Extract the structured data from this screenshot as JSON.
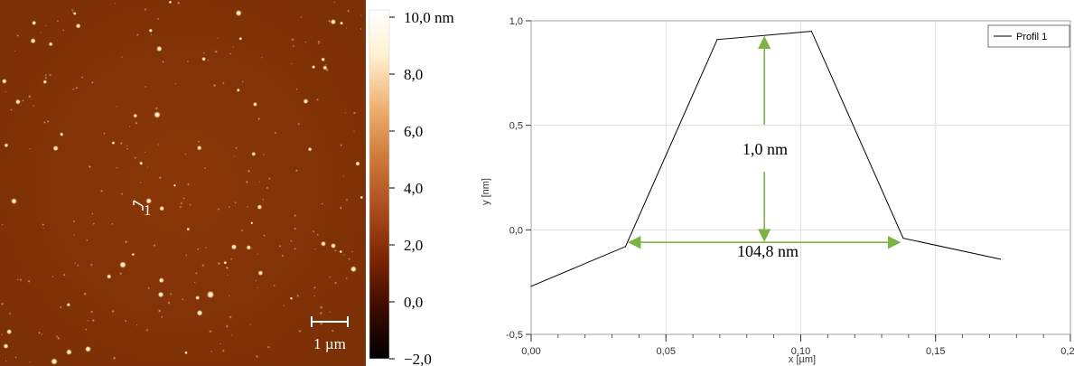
{
  "afm_image": {
    "scale_bar_label": "1 µm",
    "profile_marker_label": "1",
    "colorbar": {
      "ticks": [
        "10,0 nm",
        "8,0",
        "6,0",
        "4,0",
        "2,0",
        "0,0",
        "−2,0"
      ],
      "colors": [
        "#000000",
        "#3a0a00",
        "#7a2400",
        "#a84a1c",
        "#cf7a3a",
        "#f0b070",
        "#fff1d2",
        "#ffffff"
      ]
    }
  },
  "chart_data": {
    "type": "line",
    "xlabel": "x [µm]",
    "ylabel": "y [nm]",
    "xlim": [
      0,
      0.2
    ],
    "ylim": [
      -0.5,
      1.0
    ],
    "xticks": [
      "0,00",
      "0,05",
      "0,10",
      "0,15",
      "0,20"
    ],
    "yticks": [
      "-0,5",
      "0,0",
      "0,5",
      "1,0"
    ],
    "grid": true,
    "legend_position": "top-right",
    "series": [
      {
        "name": "Profil 1",
        "color": "#000000",
        "x": [
          0.0,
          0.035,
          0.069,
          0.104,
          0.138,
          0.174
        ],
        "y": [
          -0.27,
          -0.08,
          0.91,
          0.95,
          -0.04,
          -0.14
        ]
      }
    ],
    "annotations": {
      "height_label": "1,0 nm",
      "width_label": "104,8 nm",
      "arrow_color": "#7cb342"
    }
  }
}
